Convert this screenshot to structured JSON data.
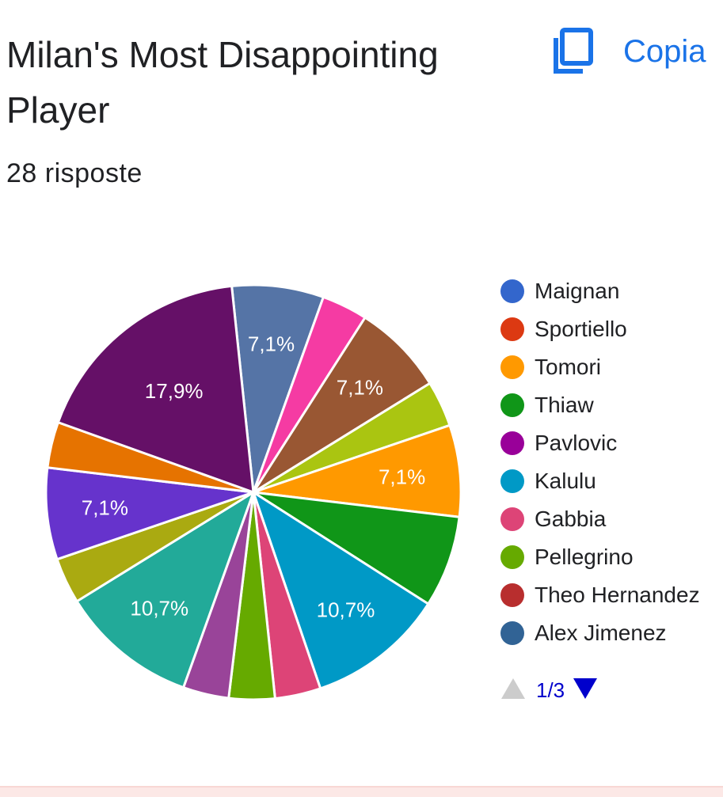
{
  "header": {
    "title": "Milan's Most Disappointing Player",
    "copy_label": "Copia",
    "responses": "28 risposte"
  },
  "chart_data": {
    "type": "pie",
    "total_responses": 28,
    "slices": [
      {
        "value": 2,
        "color": "#5574a6",
        "label": "7,1%"
      },
      {
        "value": 1,
        "color": "#f53ba3",
        "label": ""
      },
      {
        "value": 2,
        "color": "#995733",
        "label": "7,1%"
      },
      {
        "value": 1,
        "color": "#aac511",
        "label": ""
      },
      {
        "value": 2,
        "color": "#ff9900",
        "label": "7,1%"
      },
      {
        "value": 2,
        "color": "#109618",
        "label": ""
      },
      {
        "value": 3,
        "color": "#0099c6",
        "label": "10,7%"
      },
      {
        "value": 1,
        "color": "#dd4477",
        "label": ""
      },
      {
        "value": 1,
        "color": "#66aa00",
        "label": ""
      },
      {
        "value": 1,
        "color": "#994499",
        "label": ""
      },
      {
        "value": 3,
        "color": "#22aa99",
        "label": "10,7%"
      },
      {
        "value": 1,
        "color": "#aaaa11",
        "label": ""
      },
      {
        "value": 2,
        "color": "#6633cc",
        "label": "7,1%"
      },
      {
        "value": 1,
        "color": "#e67300",
        "label": ""
      },
      {
        "value": 5,
        "color": "#651067",
        "label": "17,9%"
      }
    ],
    "legend": [
      {
        "name": "Maignan",
        "color": "#3366cc"
      },
      {
        "name": "Sportiello",
        "color": "#dc3912"
      },
      {
        "name": "Tomori",
        "color": "#ff9900"
      },
      {
        "name": "Thiaw",
        "color": "#109618"
      },
      {
        "name": "Pavlovic",
        "color": "#990099"
      },
      {
        "name": "Kalulu",
        "color": "#0099c6"
      },
      {
        "name": "Gabbia",
        "color": "#dd4477"
      },
      {
        "name": "Pellegrino",
        "color": "#66aa00"
      },
      {
        "name": "Theo Hernandez",
        "color": "#b82e2e"
      },
      {
        "name": "Alex Jimenez",
        "color": "#316395"
      }
    ],
    "legend_page": "1/3"
  },
  "icons": {
    "copy": "copy-icon",
    "prev": "triangle-up-icon",
    "next": "triangle-down-icon"
  },
  "colors": {
    "accent": "#1a73e8",
    "pager_active": "#0000cc",
    "pager_disabled": "#cccccc"
  }
}
